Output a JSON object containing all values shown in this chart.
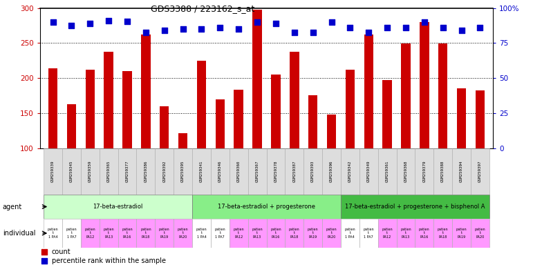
{
  "title": "GDS3388 / 223162_s_at",
  "gsm_labels": [
    "GSM259339",
    "GSM259345",
    "GSM259359",
    "GSM259365",
    "GSM259377",
    "GSM259386",
    "GSM259392",
    "GSM259395",
    "GSM259341",
    "GSM259346",
    "GSM259360",
    "GSM259367",
    "GSM259378",
    "GSM259387",
    "GSM259393",
    "GSM259396",
    "GSM259342",
    "GSM259349",
    "GSM259361",
    "GSM259368",
    "GSM259379",
    "GSM259388",
    "GSM259394",
    "GSM259397"
  ],
  "bar_values": [
    214,
    163,
    212,
    238,
    210,
    262,
    160,
    122,
    225,
    170,
    184,
    298,
    205,
    238,
    176,
    148,
    212,
    262,
    197,
    249,
    280,
    249,
    186,
    183
  ],
  "percentile_values_left": [
    280,
    275,
    278,
    282,
    281,
    265,
    268,
    270,
    270,
    272,
    270,
    280,
    278,
    265,
    265,
    280,
    272,
    265,
    272,
    272,
    280,
    272,
    268,
    272
  ],
  "bar_color": "#cc0000",
  "dot_color": "#0000cc",
  "ylim_left": [
    100,
    300
  ],
  "ylim_right": [
    0,
    100
  ],
  "yticks_left": [
    100,
    150,
    200,
    250,
    300
  ],
  "yticks_right": [
    0,
    25,
    50,
    75,
    100
  ],
  "ytick_labels_right": [
    "0",
    "25",
    "50",
    "75",
    "100%"
  ],
  "agent_groups": [
    {
      "label": "17-beta-estradiol",
      "start": 0,
      "end": 8,
      "color": "#ccffcc"
    },
    {
      "label": "17-beta-estradiol + progesterone",
      "start": 8,
      "end": 16,
      "color": "#88ee88"
    },
    {
      "label": "17-beta-estradiol + progesterone + bisphenol A",
      "start": 16,
      "end": 24,
      "color": "#44bb44"
    }
  ],
  "individual_colors": [
    "#ffffff",
    "#ffffff",
    "#ff99ff",
    "#ff99ff",
    "#ff99ff",
    "#ff99ff",
    "#ff99ff",
    "#ff99ff",
    "#ffffff",
    "#ffffff",
    "#ff99ff",
    "#ff99ff",
    "#ff99ff",
    "#ff99ff",
    "#ff99ff",
    "#ff99ff",
    "#ffffff",
    "#ffffff",
    "#ff99ff",
    "#ff99ff",
    "#ff99ff",
    "#ff99ff",
    "#ff99ff",
    "#ff99ff"
  ],
  "ind_labels": [
    "patien\nt\n1 PA4",
    "patien\nt\n1 PA7",
    "patien\nt\nPA12",
    "patien\nt\nPA13",
    "patien\nt\nPA16",
    "patien\nt\nPA18",
    "patien\nt\nPA19",
    "patien\nt\nPA20",
    "patien\nt\n1 PA4",
    "patien\nt\n1 PA7",
    "patien\nt\nPA12",
    "patien\nt\nPA13",
    "patien\nt\nPA16",
    "patien\nt\nPA18",
    "patien\nt\nPA19",
    "patien\nt\nPA20",
    "patien\nt\n1 PA4",
    "patien\nt\n1 PA7",
    "patien\nt\nPA12",
    "patien\nt\nPA13",
    "patien\nt\nPA16",
    "patien\nt\nPA18",
    "patien\nt\nPA19",
    "patien\nt\nPA20"
  ],
  "legend_items": [
    {
      "color": "#cc0000",
      "label": "count"
    },
    {
      "color": "#0000cc",
      "label": "percentile rank within the sample"
    }
  ],
  "bar_width": 0.5,
  "dot_size": 35,
  "dot_marker": "s",
  "background_color": "#ffffff",
  "xtick_bg": "#dddddd"
}
